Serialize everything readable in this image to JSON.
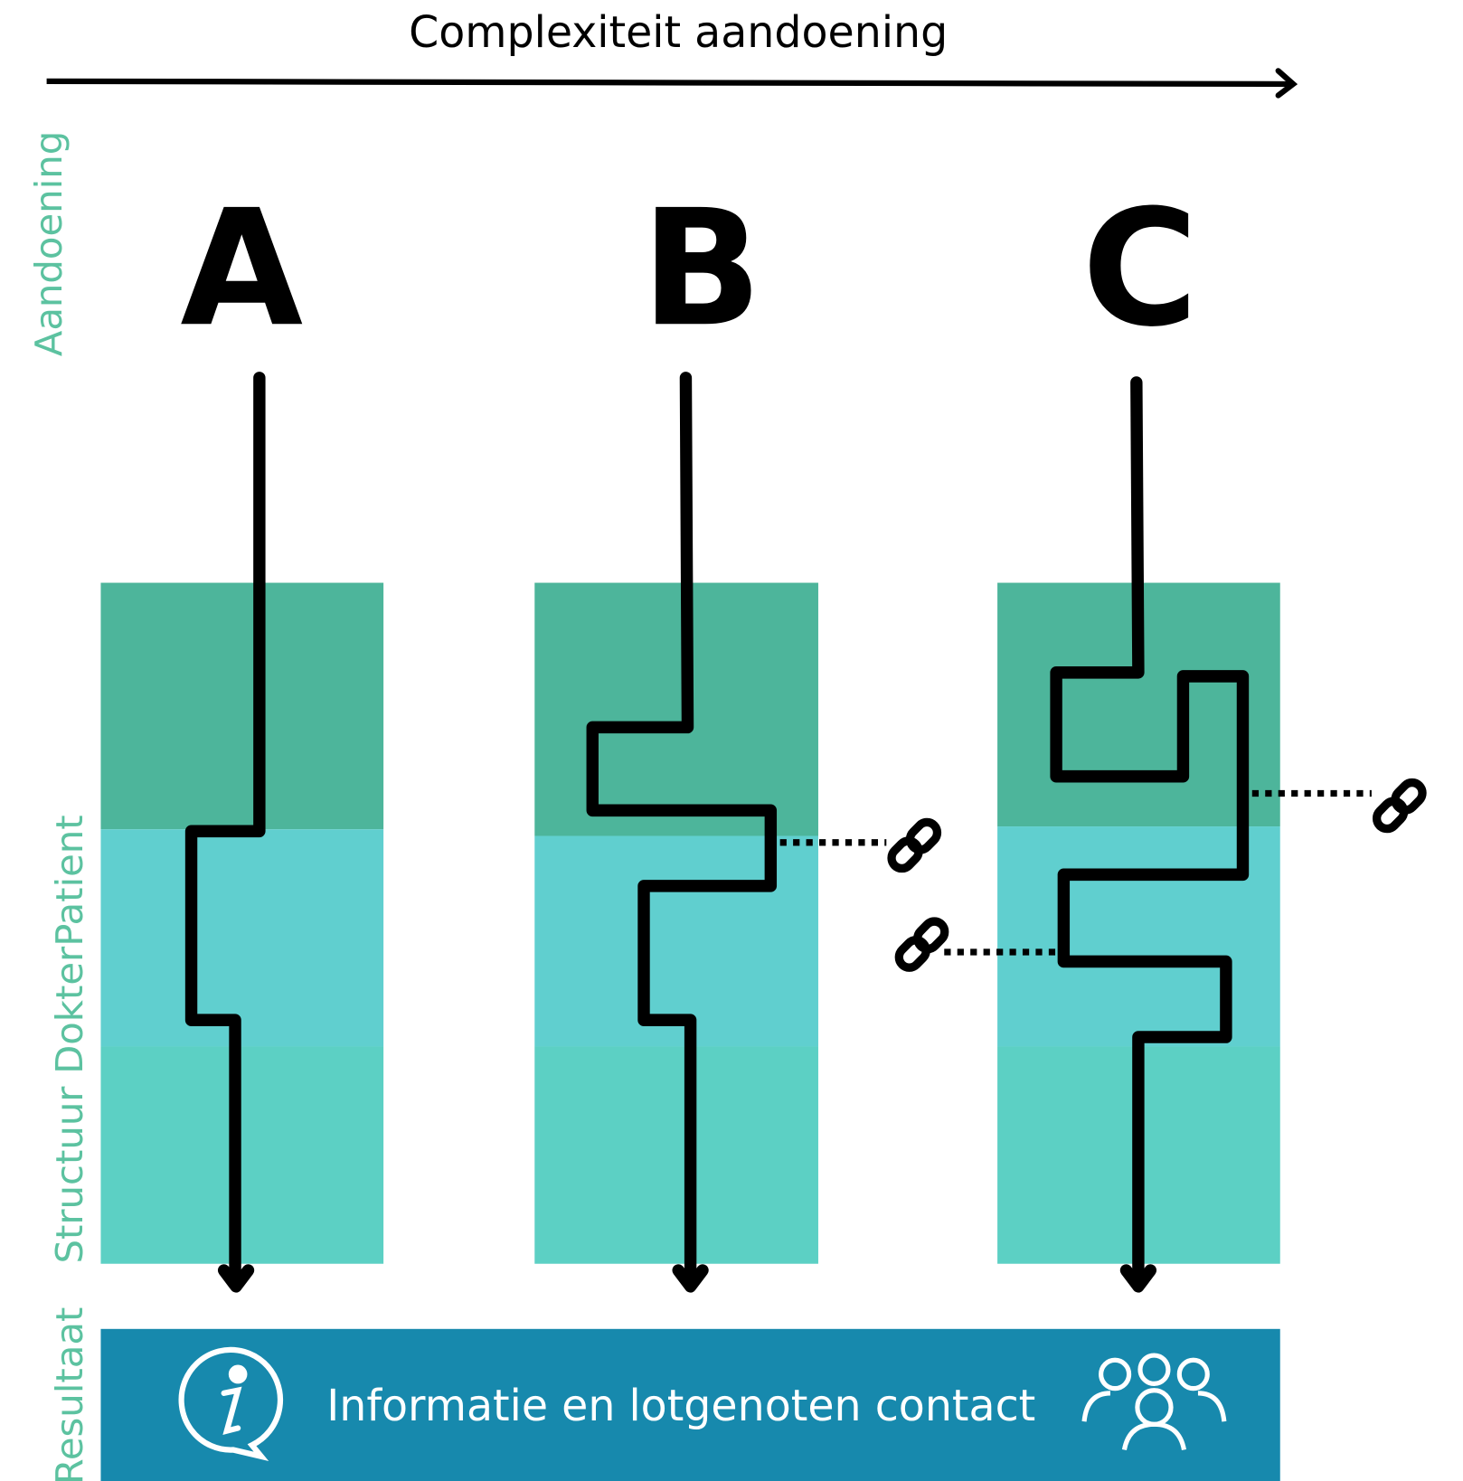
{
  "header": {
    "title": "Complexiteit aandoening"
  },
  "columns": [
    {
      "label": "A"
    },
    {
      "label": "B"
    },
    {
      "label": "C"
    }
  ],
  "side_labels": {
    "aandoening": "Aandoening",
    "structuur": "Structuur",
    "dokterpatient": "DokterPatient",
    "resultaat": "Resultaat"
  },
  "result": {
    "text": "Informatie en lotgenoten contact"
  }
}
